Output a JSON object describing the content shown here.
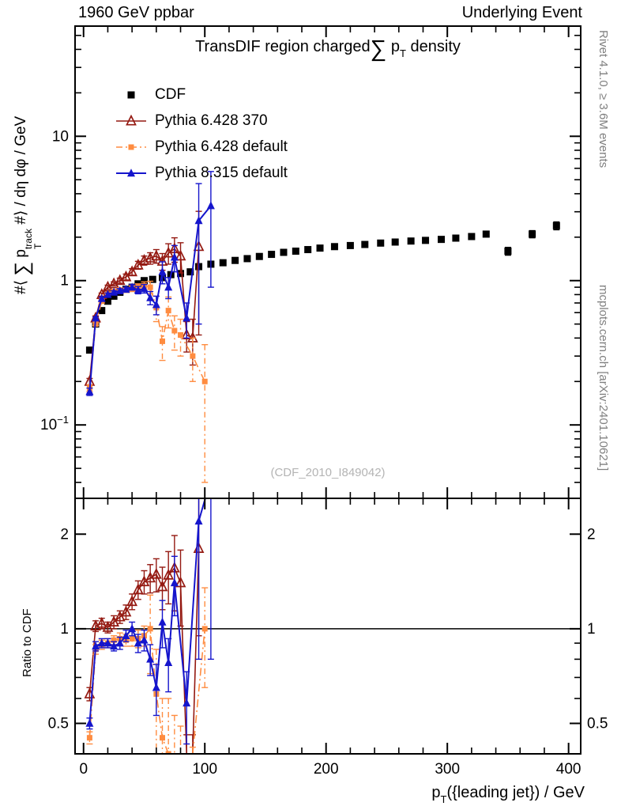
{
  "header": {
    "left": "1960 GeV ppbar",
    "right": "Underlying Event"
  },
  "side_notes": {
    "top_right": "Rivet 4.1.0, ≥ 3.6M events",
    "bottom_right": "mcplots.cern.ch [arXiv:2401.10621]"
  },
  "watermark": "(CDF_2010_I849042)",
  "title": {
    "prefix": "TransDIF region charged",
    "sum": "∑",
    "p": "p",
    "sub": "T",
    "suffix": "density"
  },
  "axes": {
    "y_main": {
      "prefix": "#⟨",
      "sum": "∑",
      "p": "p",
      "sup": "track",
      "sub": "T",
      "suffix": "#⟩ / dη dφ / GeV"
    },
    "y_ratio": "Ratio to CDF",
    "x": {
      "p": "p",
      "sub": "T",
      "suffix": "({leading jet}) / GeV"
    }
  },
  "chart_data": {
    "type": "line",
    "title": "TransDIF region charged ∑ pT density",
    "xlabel": "pT({leading jet}) / GeV",
    "ylabel": "#⟨∑ pT^track #⟩ / dη dφ / GeV",
    "ratio_ylabel": "Ratio to CDF",
    "legend_position": "upper-left-inside",
    "grid": false,
    "x_axis": {
      "min": -7,
      "max": 410,
      "major_ticks": [
        0,
        100,
        200,
        300,
        400
      ],
      "minor_step": 20,
      "tick_labels": [
        {
          "v": 0,
          "t": "0"
        },
        {
          "v": 100,
          "t": "100"
        },
        {
          "v": 200,
          "t": "200"
        },
        {
          "v": 300,
          "t": "300"
        },
        {
          "v": 400,
          "t": "400"
        }
      ]
    },
    "y_main": {
      "scale": "log",
      "min": 0.031,
      "max": 58,
      "tick_labels": [
        {
          "v": 0.1,
          "base": "10",
          "exp": "−1"
        },
        {
          "v": 1,
          "base": "1"
        },
        {
          "v": 10,
          "base": "10"
        }
      ]
    },
    "y_ratio": {
      "scale": "log",
      "min": 0.4,
      "max": 2.6,
      "tick_labels": [
        {
          "v": 0.5,
          "base": "0.5"
        },
        {
          "v": 1,
          "base": "1"
        },
        {
          "v": 2,
          "base": "2"
        }
      ]
    },
    "reference_line": 1,
    "series": [
      {
        "id": "cdf",
        "name": "CDF",
        "color": "#000000",
        "marker": "square",
        "msize": 9,
        "line": "none",
        "x": [
          5,
          10,
          15,
          20,
          25,
          30,
          35,
          40,
          45,
          50,
          57,
          65,
          72,
          80,
          88,
          95,
          105,
          115,
          125,
          135,
          145,
          155,
          165,
          175,
          185,
          195,
          207,
          220,
          232,
          245,
          257,
          270,
          282,
          295,
          307,
          320,
          332,
          350,
          370,
          390
        ],
        "y": [
          0.33,
          0.5,
          0.62,
          0.72,
          0.78,
          0.83,
          0.87,
          0.9,
          0.95,
          1.0,
          1.02,
          1.05,
          1.1,
          1.12,
          1.15,
          1.25,
          1.3,
          1.33,
          1.38,
          1.42,
          1.47,
          1.52,
          1.57,
          1.6,
          1.64,
          1.68,
          1.72,
          1.75,
          1.78,
          1.82,
          1.85,
          1.88,
          1.9,
          1.93,
          1.97,
          2.02,
          2.1,
          1.6,
          2.1,
          2.4
        ],
        "err": [
          0.01,
          0.01,
          0.01,
          0.01,
          0.01,
          0.01,
          0.01,
          0.02,
          0.02,
          0.02,
          0.02,
          0.02,
          0.02,
          0.03,
          0.03,
          0.03,
          0.03,
          0.03,
          0.03,
          0.03,
          0.04,
          0.04,
          0.04,
          0.04,
          0.04,
          0.05,
          0.05,
          0.05,
          0.05,
          0.05,
          0.06,
          0.06,
          0.06,
          0.07,
          0.07,
          0.08,
          0.09,
          0.1,
          0.12,
          0.15
        ]
      },
      {
        "id": "py6-370",
        "name": "Pythia 6.428 370",
        "color": "#941911",
        "marker": "triangle-open",
        "msize": 11,
        "line": "solid",
        "lw": 1.6,
        "x": [
          5,
          10,
          15,
          20,
          25,
          30,
          35,
          40,
          45,
          50,
          55,
          60,
          65,
          70,
          75,
          80,
          85,
          90,
          95
        ],
        "y": [
          0.2,
          0.55,
          0.8,
          0.9,
          0.95,
          1.0,
          1.06,
          1.15,
          1.28,
          1.38,
          1.43,
          1.48,
          1.36,
          1.55,
          1.66,
          1.48,
          0.42,
          0.4,
          1.72
        ],
        "err": [
          0.01,
          0.02,
          0.02,
          0.03,
          0.03,
          0.04,
          0.05,
          0.06,
          0.08,
          0.1,
          0.13,
          0.16,
          0.18,
          0.25,
          0.32,
          0.35,
          0.1,
          0.14,
          1.3
        ],
        "ratio": [
          0.62,
          1.02,
          1.04,
          1.01,
          1.05,
          1.09,
          1.13,
          1.22,
          1.33,
          1.41,
          1.45,
          1.49,
          1.36,
          1.48,
          1.56,
          1.4,
          0.36,
          0.33,
          1.8
        ],
        "ratio_err": [
          0.03,
          0.04,
          0.04,
          0.04,
          0.05,
          0.05,
          0.06,
          0.07,
          0.09,
          0.12,
          0.15,
          0.18,
          0.21,
          0.28,
          0.42,
          0.38,
          0.1,
          0.13,
          0.85
        ]
      },
      {
        "id": "py6-def",
        "name": "Pythia 6.428 default",
        "color": "#ff8c40",
        "marker": "square",
        "msize": 7,
        "line": "dashdot",
        "lw": 1.6,
        "x": [
          5,
          10,
          15,
          20,
          25,
          30,
          35,
          40,
          45,
          50,
          55,
          60,
          65,
          70,
          75,
          80,
          90,
          100
        ],
        "y": [
          0.18,
          0.5,
          0.72,
          0.8,
          0.84,
          0.86,
          0.86,
          0.88,
          0.9,
          0.92,
          0.9,
          0.65,
          0.38,
          0.62,
          0.45,
          0.42,
          0.3,
          0.2
        ],
        "err": [
          0.01,
          0.01,
          0.02,
          0.02,
          0.02,
          0.03,
          0.03,
          0.04,
          0.05,
          0.06,
          0.09,
          0.13,
          0.1,
          0.15,
          0.12,
          0.12,
          0.1,
          0.16
        ],
        "ratio": [
          0.45,
          0.86,
          0.89,
          0.9,
          0.92,
          0.93,
          0.92,
          0.93,
          0.93,
          0.95,
          1.0,
          0.62,
          0.45,
          0.4,
          0.37,
          0.34,
          0.3,
          1.0
        ],
        "ratio_err": [
          0.02,
          0.03,
          0.03,
          0.03,
          0.03,
          0.04,
          0.04,
          0.05,
          0.06,
          0.07,
          0.28,
          0.24,
          0.15,
          0.2,
          0.16,
          0.15,
          0.12,
          0.35
        ]
      },
      {
        "id": "py8-def",
        "name": "Pythia 8.315 default",
        "color": "#1515cc",
        "marker": "triangle",
        "msize": 10,
        "line": "solid",
        "lw": 2,
        "x": [
          5,
          10,
          15,
          20,
          25,
          30,
          35,
          40,
          45,
          50,
          55,
          60,
          65,
          70,
          75,
          85,
          95,
          105
        ],
        "y": [
          0.17,
          0.55,
          0.75,
          0.8,
          0.83,
          0.85,
          0.87,
          0.9,
          0.86,
          0.88,
          0.76,
          0.68,
          1.15,
          0.9,
          1.45,
          0.55,
          2.6,
          3.3
        ],
        "err": [
          0.01,
          0.01,
          0.02,
          0.02,
          0.02,
          0.03,
          0.03,
          0.04,
          0.05,
          0.06,
          0.08,
          0.1,
          0.2,
          0.15,
          0.3,
          0.15,
          2.1,
          2.4
        ],
        "ratio": [
          0.5,
          0.88,
          0.9,
          0.9,
          0.88,
          0.9,
          0.95,
          1.0,
          0.9,
          0.92,
          0.8,
          0.65,
          1.05,
          0.78,
          1.4,
          0.58,
          2.2,
          3.0
        ],
        "ratio_err": [
          0.02,
          0.03,
          0.03,
          0.03,
          0.03,
          0.04,
          0.04,
          0.05,
          0.06,
          0.07,
          0.09,
          0.12,
          0.18,
          0.15,
          0.3,
          0.15,
          1.4,
          2.2
        ]
      }
    ]
  }
}
